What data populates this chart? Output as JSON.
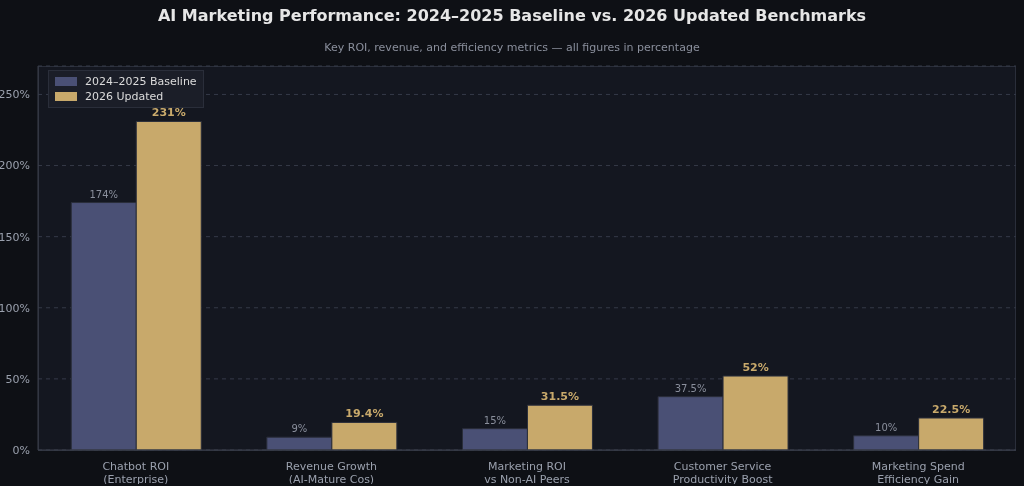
{
  "chart_data": {
    "type": "bar",
    "title": "AI Marketing Performance: 2024–2025 Baseline vs. 2026 Updated Benchmarks",
    "subtitle": "Key ROI, revenue, and efficiency metrics — all figures in percentage",
    "categories": [
      "Chatbot ROI\n(Enterprise)",
      "Revenue Growth\n(AI-Mature Cos)",
      "Marketing ROI\nvs Non-AI Peers",
      "Customer Service\nProductivity Boost",
      "Marketing Spend\nEfficiency Gain"
    ],
    "series": [
      {
        "name": "2024–2025 Baseline",
        "color": "#4a5075",
        "values": [
          174,
          9,
          15,
          37.5,
          10
        ],
        "value_labels": [
          "174%",
          "9%",
          "15%",
          "37.5%",
          "10%"
        ]
      },
      {
        "name": "2026 Updated",
        "color": "#c8a96b",
        "values": [
          231,
          19.4,
          31.5,
          52,
          22.5
        ],
        "value_labels": [
          "231%",
          "19.4%",
          "31.5%",
          "52%",
          "22.5%"
        ]
      }
    ],
    "ylim": [
      0,
      270
    ],
    "yticks": [
      {
        "value": 0,
        "label": "0%"
      },
      {
        "value": 50,
        "label": "50%"
      },
      {
        "value": 100,
        "label": "100%"
      },
      {
        "value": 150,
        "label": "150%"
      },
      {
        "value": 200,
        "label": "200%"
      },
      {
        "value": 250,
        "label": "250%"
      }
    ],
    "grid": "y",
    "legend": "top left"
  }
}
